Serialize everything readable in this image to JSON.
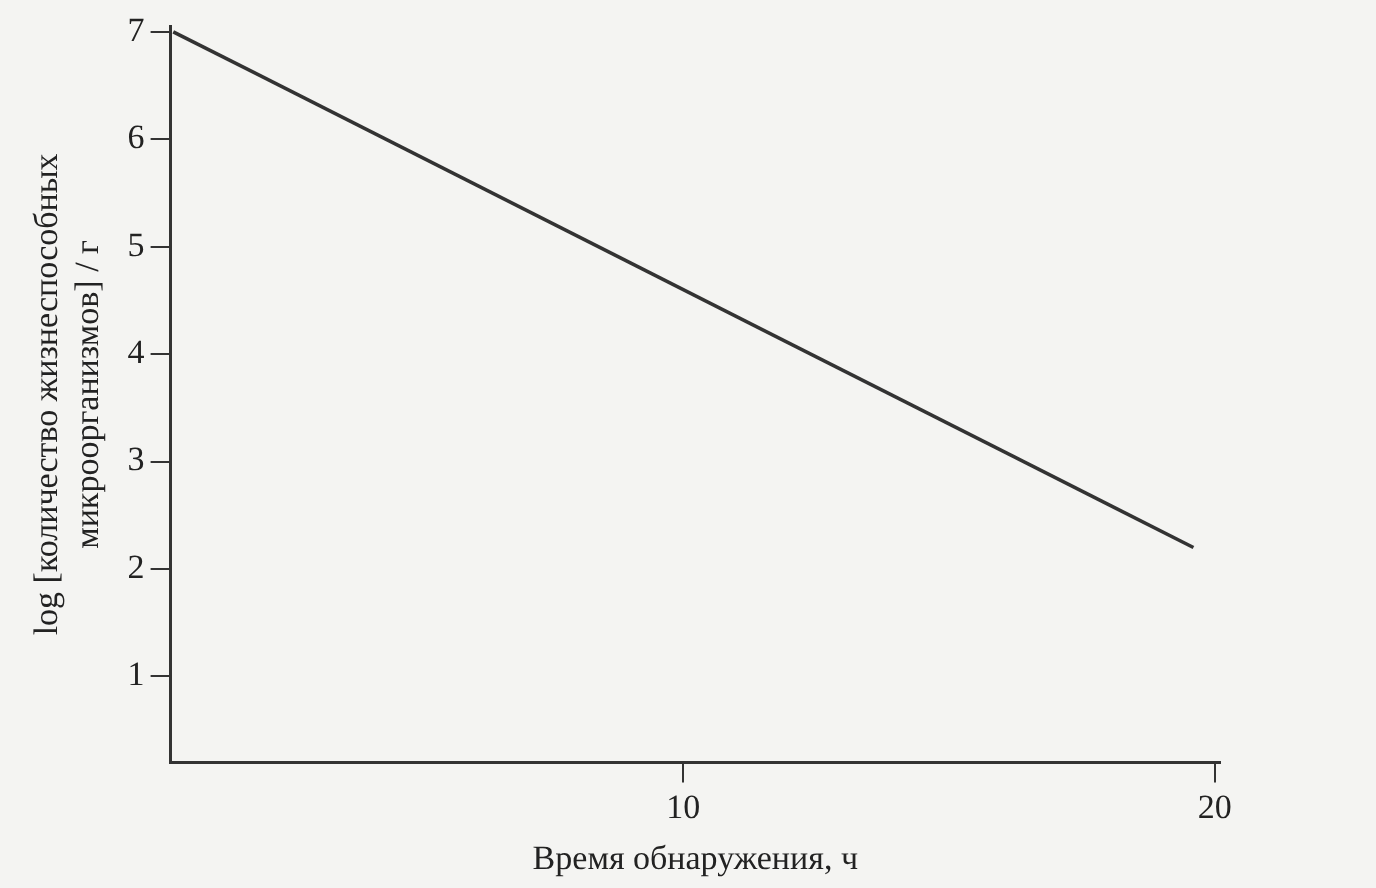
{
  "chart_data": {
    "type": "line",
    "xlabel": "Время обнаружения, ч",
    "ylabel": "log [количество жизнеспособных\nмикроорганизмов] / г",
    "x": [
      0.4,
      19.6
    ],
    "series": [
      {
        "color": "#333333",
        "values": [
          7,
          2.2
        ]
      }
    ],
    "xlim": [
      0.35,
      20.1
    ],
    "xticks": [
      10,
      20
    ],
    "ylim": [
      0.2,
      7.05
    ],
    "yticks": [
      1,
      2,
      3,
      4,
      5,
      6,
      7
    ],
    "grid": false,
    "legend": false,
    "marker": "none",
    "line_style": "solid"
  }
}
